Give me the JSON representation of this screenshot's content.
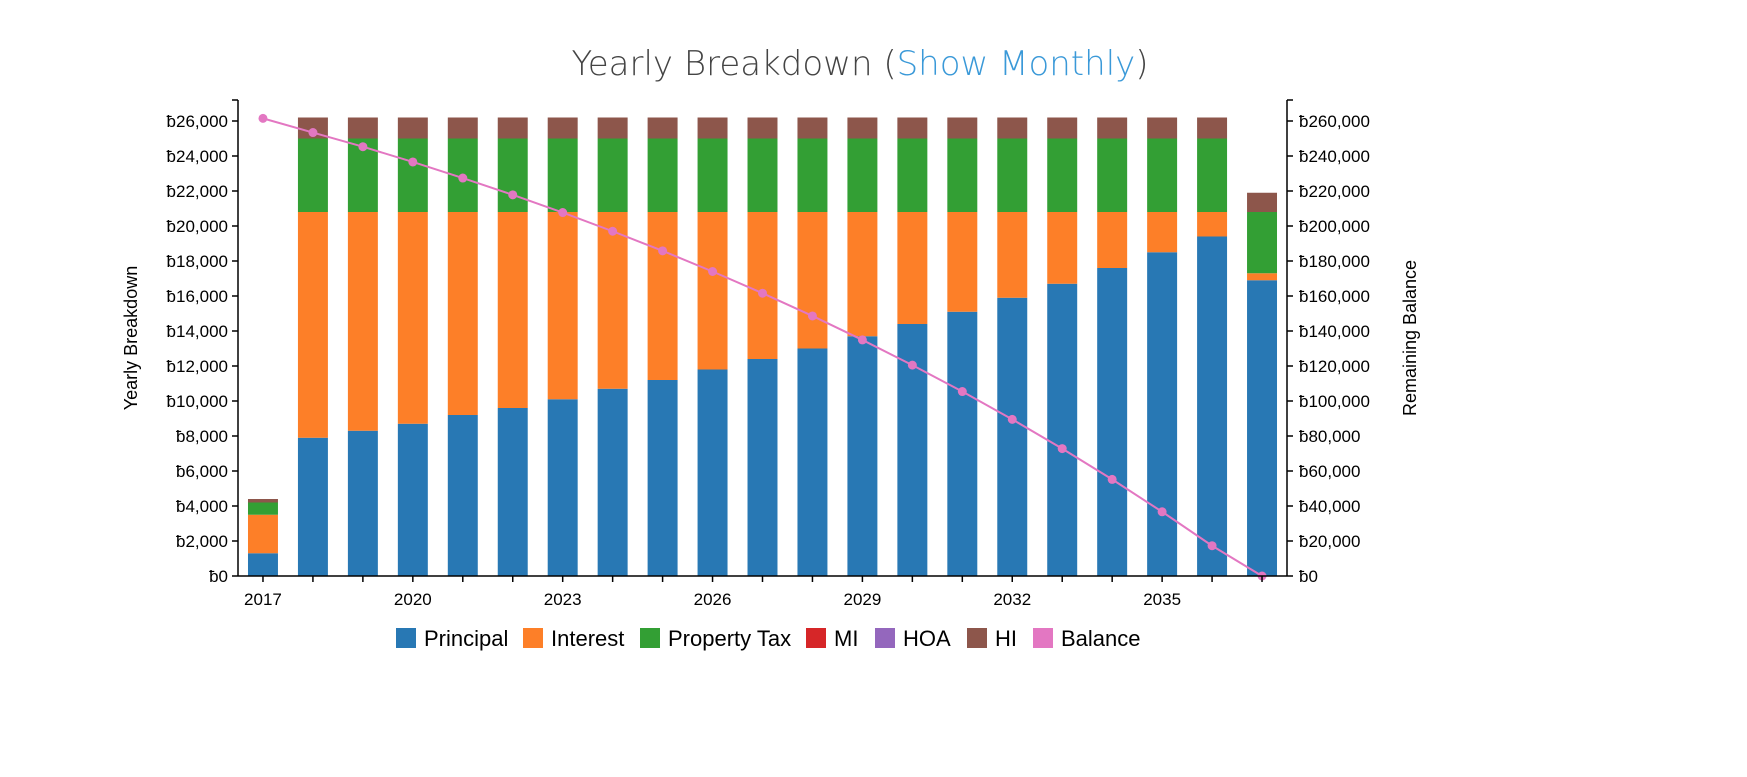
{
  "header": {
    "title_prefix": "Yearly Breakdown (",
    "title_link": "Show Monthly",
    "title_suffix": ")"
  },
  "colors": {
    "Principal": "#2878b4",
    "Interest": "#fd7f28",
    "Property Tax": "#339f34",
    "MI": "#d62628",
    "HOA": "#9467bd",
    "HI": "#8d564b",
    "Balance": "#e377c2"
  },
  "chart_data": {
    "type": "bar",
    "stacked": true,
    "title": "Yearly Breakdown (Show Monthly)",
    "ylabel": "Yearly Breakdown",
    "y2label": "Remaining Balance",
    "categories": [
      "2017",
      "2018",
      "2019",
      "2020",
      "2021",
      "2022",
      "2023",
      "2024",
      "2025",
      "2026",
      "2027",
      "2028",
      "2029",
      "2030",
      "2031",
      "2032",
      "2033",
      "2034",
      "2035",
      "2036",
      "2037"
    ],
    "x_tick_labels": [
      "2017",
      "2020",
      "2023",
      "2026",
      "2029",
      "2032",
      "2035"
    ],
    "ylim": [
      0,
      26000
    ],
    "y_ticks": [
      "ƀ0",
      "ƀ2,000",
      "ƀ4,000",
      "ƀ6,000",
      "ƀ8,000",
      "ƀ10,000",
      "ƀ12,000",
      "ƀ14,000",
      "ƀ16,000",
      "ƀ18,000",
      "ƀ20,000",
      "ƀ22,000",
      "ƀ24,000",
      "ƀ26,000"
    ],
    "y2lim": [
      0,
      260000
    ],
    "y2_ticks": [
      "ƀ0",
      "ƀ20,000",
      "ƀ40,000",
      "ƀ60,000",
      "ƀ80,000",
      "ƀ100,000",
      "ƀ120,000",
      "ƀ140,000",
      "ƀ160,000",
      "ƀ180,000",
      "ƀ200,000",
      "ƀ220,000",
      "ƀ240,000",
      "ƀ260,000"
    ],
    "series": [
      {
        "name": "Principal",
        "values": [
          1300,
          7900,
          8300,
          8700,
          9200,
          9600,
          10100,
          10700,
          11200,
          11800,
          12400,
          13000,
          13700,
          14400,
          15100,
          15900,
          16700,
          17600,
          18500,
          19400,
          16900
        ]
      },
      {
        "name": "Interest",
        "values": [
          2200,
          12900,
          12500,
          12100,
          11600,
          11200,
          10700,
          10100,
          9600,
          9000,
          8400,
          7800,
          7100,
          6400,
          5700,
          4900,
          4100,
          3200,
          2300,
          1400,
          400
        ]
      },
      {
        "name": "Property Tax",
        "values": [
          700,
          4200,
          4200,
          4200,
          4200,
          4200,
          4200,
          4200,
          4200,
          4200,
          4200,
          4200,
          4200,
          4200,
          4200,
          4200,
          4200,
          4200,
          4200,
          4200,
          3500
        ]
      },
      {
        "name": "MI",
        "values": [
          0,
          0,
          0,
          0,
          0,
          0,
          0,
          0,
          0,
          0,
          0,
          0,
          0,
          0,
          0,
          0,
          0,
          0,
          0,
          0,
          0
        ]
      },
      {
        "name": "HOA",
        "values": [
          0,
          0,
          0,
          0,
          0,
          0,
          0,
          0,
          0,
          0,
          0,
          0,
          0,
          0,
          0,
          0,
          0,
          0,
          0,
          0,
          0
        ]
      },
      {
        "name": "HI",
        "values": [
          200,
          1200,
          1200,
          1200,
          1200,
          1200,
          1200,
          1200,
          1200,
          1200,
          1200,
          1200,
          1200,
          1200,
          1200,
          1200,
          1200,
          1200,
          1200,
          1200,
          1100
        ]
      }
    ],
    "line_series": {
      "name": "Balance",
      "axis": "right",
      "values": [
        261500,
        253400,
        245300,
        236600,
        227400,
        217800,
        207700,
        197000,
        185800,
        174000,
        161600,
        148600,
        134900,
        120500,
        105400,
        89500,
        72800,
        55200,
        36700,
        17300,
        0
      ]
    },
    "legend": [
      "Principal",
      "Interest",
      "Property Tax",
      "MI",
      "HOA",
      "HI",
      "Balance"
    ],
    "legend_position": "bottom"
  }
}
